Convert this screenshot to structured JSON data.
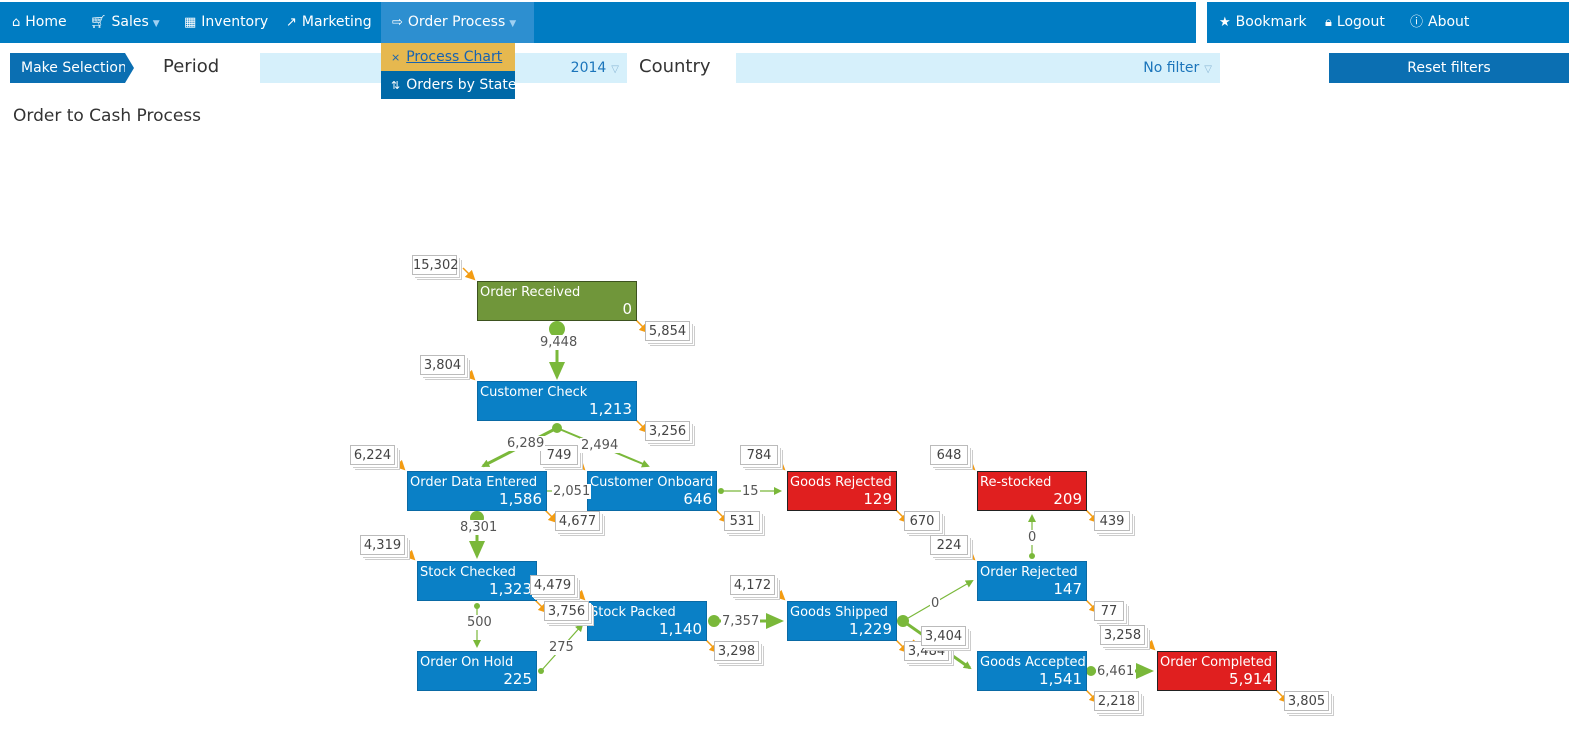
{
  "nav": {
    "home": "Home",
    "sales": "Sales",
    "inventory": "Inventory",
    "marketing": "Marketing",
    "order_process": "Order Process",
    "bookmark": "Bookmark",
    "logout": "Logout",
    "about": "About"
  },
  "dropdown": {
    "process_chart": "Process Chart",
    "orders_by_state": "Orders by State"
  },
  "filters": {
    "make_selection": "Make Selection",
    "period_label": "Period",
    "period_value": "2014",
    "country_label": "Country",
    "country_value": "No filter",
    "reset": "Reset filters"
  },
  "page_title": "Order to Cash Process",
  "process": {
    "nodes": {
      "order_received": {
        "name": "Order Received",
        "count": "0"
      },
      "customer_check": {
        "name": "Customer Check",
        "count": "1,213"
      },
      "order_data_entered": {
        "name": "Order Data Entered",
        "count": "1,586"
      },
      "customer_onboard": {
        "name": "Customer Onboard",
        "count": "646"
      },
      "goods_rejected": {
        "name": "Goods Rejected",
        "count": "129"
      },
      "re_stocked": {
        "name": "Re-stocked",
        "count": "209"
      },
      "stock_checked": {
        "name": "Stock Checked",
        "count": "1,323"
      },
      "stock_packed": {
        "name": "Stock Packed",
        "count": "1,140"
      },
      "goods_shipped": {
        "name": "Goods Shipped",
        "count": "1,229"
      },
      "order_rejected": {
        "name": "Order Rejected",
        "count": "147"
      },
      "order_on_hold": {
        "name": "Order On Hold",
        "count": "225"
      },
      "goods_accepted": {
        "name": "Goods Accepted",
        "count": "1,541"
      },
      "order_completed": {
        "name": "Order Completed",
        "count": "5,914"
      }
    },
    "badges": {
      "order_received_in": "15,302",
      "order_received_out": "5,854",
      "customer_check_in": "3,804",
      "customer_check_out": "3,256",
      "order_data_entered_in": "6,224",
      "order_data_entered_out": "4,677",
      "customer_onboard_in": "749",
      "customer_onboard_out": "531",
      "goods_rejected_in": "784",
      "goods_rejected_out": "670",
      "re_stocked_in": "648",
      "re_stocked_out": "439",
      "stock_checked_in": "4,319",
      "stock_checked_out": "3,756",
      "stock_packed_in": "4,479",
      "stock_packed_out": "3,298",
      "goods_shipped_in": "4,172",
      "goods_shipped_out": "3,484",
      "order_rejected_in": "224",
      "order_rejected_out": "77",
      "goods_accepted_in": "3,404",
      "goods_accepted_out": "2,218",
      "order_completed_in": "3,258",
      "order_completed_out": "3,805"
    },
    "flows": {
      "received_to_check": "9,448",
      "check_to_data_entered": "6,289",
      "check_to_onboard": "2,494",
      "data_entered_to_onboard": "2,051",
      "onboard_to_goods_rejected": "15",
      "data_entered_to_stock_checked": "8,301",
      "stock_checked_to_on_hold": "500",
      "on_hold_to_stock_packed": "275",
      "stock_packed_to_goods_shipped": "7,357",
      "shipped_to_order_rejected": "0",
      "order_rejected_to_restocked": "0",
      "accepted_to_completed": "6,461"
    }
  },
  "colors": {
    "nav": "#007cc2",
    "node_blue": "#0a80c6",
    "node_green": "#70963a",
    "node_red": "#e01f1f",
    "flow": "#7ab83a",
    "badge_arrow": "#f39c12"
  }
}
